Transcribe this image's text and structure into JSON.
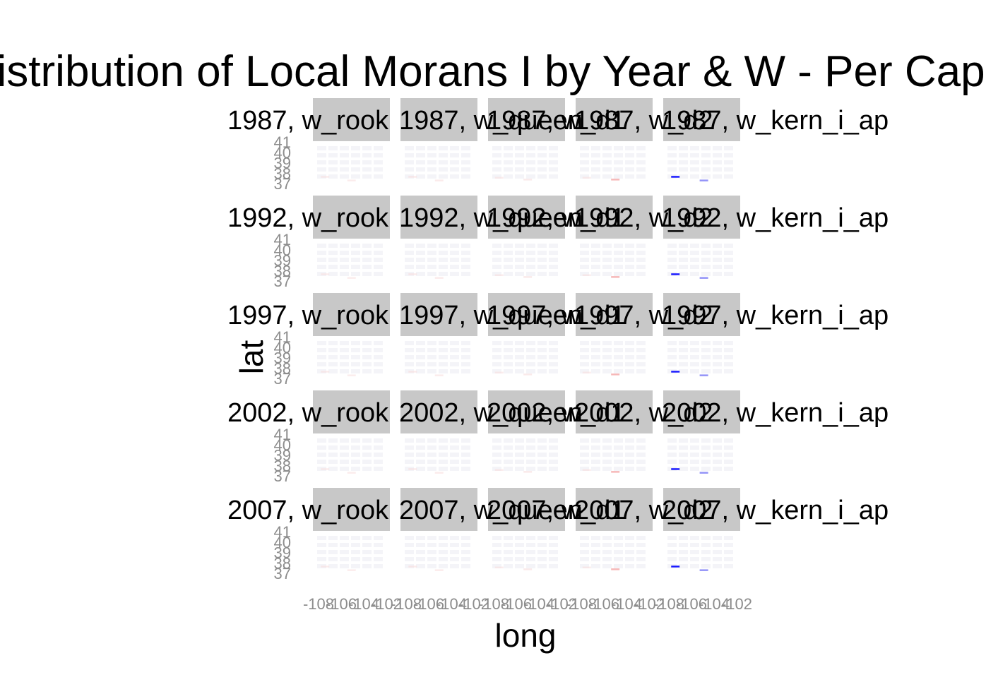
{
  "chart_data": {
    "type": "heatmap",
    "title": "Distribution of Local Morans I by Year & W - Per Capita A",
    "xlabel": "long",
    "ylabel": "lat",
    "years": [
      "1987",
      "1992",
      "1997",
      "2002",
      "2007"
    ],
    "weights": [
      "w_rook",
      "w_queen",
      "w_d1",
      "w_d2",
      "w_kern_i_ap"
    ],
    "facet_label_separator": ", ",
    "x_ticks": [
      "-108",
      "-106",
      "-104",
      "-102"
    ],
    "y_ticks": [
      "41",
      "40",
      "39",
      "38",
      "37"
    ],
    "xlim": [
      -109,
      -102
    ],
    "ylim": [
      37,
      41
    ],
    "grid": false,
    "panel_background": "#ffffff",
    "strip_background": "#c8c8c8",
    "colors": {
      "positive": "#ff0000",
      "negative": "#0000ff",
      "faint_positive": "#f7dada",
      "faint_negative": "#d7d7fb",
      "grid_texture": "#f4f4f8",
      "strip_text": "#1a1a1a",
      "tick_text": "#8c8c8c"
    },
    "marks": [
      {
        "weight": "w_rook",
        "sign": "positive",
        "x": -108.5,
        "y": 37.6,
        "strength": 0.3
      },
      {
        "weight": "w_rook",
        "sign": "positive",
        "x": -105.9,
        "y": 37.2,
        "strength": 0.3
      },
      {
        "weight": "w_queen",
        "sign": "positive",
        "x": -108.5,
        "y": 37.6,
        "strength": 0.35
      },
      {
        "weight": "w_queen",
        "sign": "positive",
        "x": -105.9,
        "y": 37.2,
        "strength": 0.35
      },
      {
        "weight": "w_d1",
        "sign": "positive",
        "x": -108.6,
        "y": 37.5,
        "strength": 0.3
      },
      {
        "weight": "w_d1",
        "sign": "positive",
        "x": -105.8,
        "y": 37.3,
        "strength": 0.4
      },
      {
        "weight": "w_d2",
        "sign": "positive",
        "x": -108.6,
        "y": 37.5,
        "strength": 0.3
      },
      {
        "weight": "w_d2",
        "sign": "positive",
        "x": -105.8,
        "y": 37.3,
        "strength": 0.45
      },
      {
        "weight": "w_kern_i_ap",
        "sign": "negative",
        "x": -108.5,
        "y": 37.6,
        "strength": 0.85
      },
      {
        "weight": "w_kern_i_ap",
        "sign": "negative",
        "x": -105.7,
        "y": 37.2,
        "strength": 0.6
      }
    ]
  }
}
